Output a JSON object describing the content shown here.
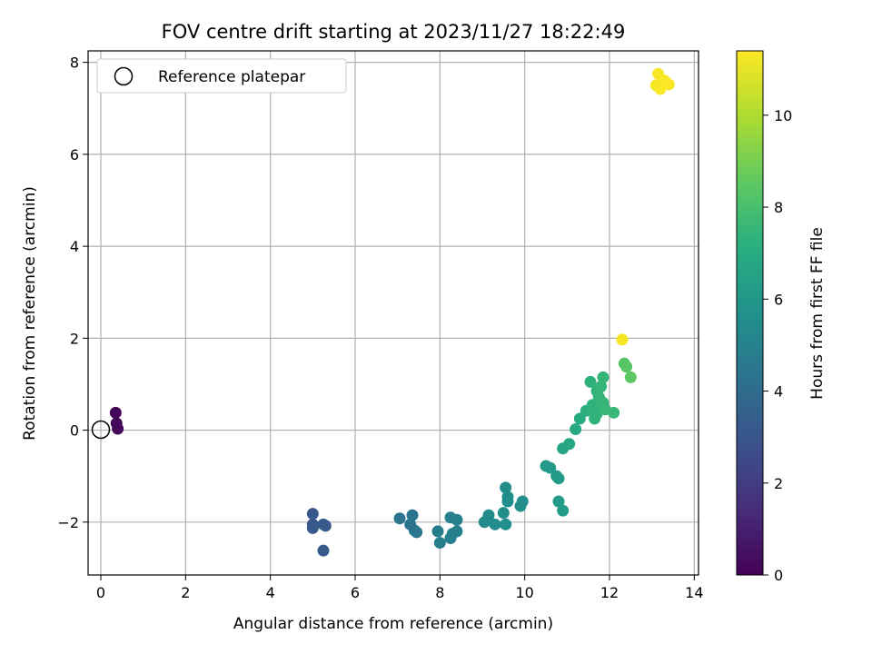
{
  "chart_data": {
    "type": "scatter",
    "title": "FOV centre drift starting at 2023/11/27 18:22:49",
    "xlabel": "Angular distance from reference (arcmin)",
    "ylabel": "Rotation from reference (arcmin)",
    "xlim": [
      -0.3,
      14.1
    ],
    "ylim": [
      -3.15,
      8.25
    ],
    "xticks": [
      0,
      2,
      4,
      6,
      8,
      10,
      12,
      14
    ],
    "yticks": [
      -2,
      0,
      2,
      4,
      6,
      8
    ],
    "grid": true,
    "legend": {
      "placement": "upper-left",
      "entries": [
        "Reference platepar"
      ]
    },
    "reference_point": {
      "x": 0,
      "y": 0
    },
    "colorbar": {
      "label": "Hours from first FF file",
      "colormap": "viridis",
      "range": [
        0,
        11.4
      ],
      "ticks": [
        0,
        2,
        4,
        6,
        8,
        10
      ]
    },
    "points": [
      {
        "x": 0.35,
        "y": 0.38,
        "c": 0.1
      },
      {
        "x": 0.37,
        "y": 0.15,
        "c": 0.15
      },
      {
        "x": 0.4,
        "y": 0.03,
        "c": 0.2
      },
      {
        "x": 5.0,
        "y": -1.82,
        "c": 3.1
      },
      {
        "x": 5.0,
        "y": -2.05,
        "c": 3.1
      },
      {
        "x": 5.0,
        "y": -2.13,
        "c": 3.15
      },
      {
        "x": 5.25,
        "y": -2.05,
        "c": 3.2
      },
      {
        "x": 5.3,
        "y": -2.08,
        "c": 3.2
      },
      {
        "x": 5.25,
        "y": -2.62,
        "c": 3.25
      },
      {
        "x": 7.05,
        "y": -1.92,
        "c": 4.3
      },
      {
        "x": 7.3,
        "y": -2.05,
        "c": 4.35
      },
      {
        "x": 7.35,
        "y": -1.85,
        "c": 4.35
      },
      {
        "x": 7.4,
        "y": -2.18,
        "c": 4.4
      },
      {
        "x": 7.45,
        "y": -2.22,
        "c": 4.4
      },
      {
        "x": 7.95,
        "y": -2.2,
        "c": 4.8
      },
      {
        "x": 8.0,
        "y": -2.45,
        "c": 4.8
      },
      {
        "x": 8.25,
        "y": -1.9,
        "c": 4.85
      },
      {
        "x": 8.3,
        "y": -2.25,
        "c": 4.9
      },
      {
        "x": 8.25,
        "y": -2.35,
        "c": 4.9
      },
      {
        "x": 8.4,
        "y": -1.95,
        "c": 4.9
      },
      {
        "x": 8.4,
        "y": -2.2,
        "c": 4.95
      },
      {
        "x": 9.05,
        "y": -2.0,
        "c": 5.4
      },
      {
        "x": 9.15,
        "y": -1.85,
        "c": 5.4
      },
      {
        "x": 9.3,
        "y": -2.05,
        "c": 5.45
      },
      {
        "x": 9.5,
        "y": -1.8,
        "c": 5.5
      },
      {
        "x": 9.55,
        "y": -1.25,
        "c": 5.5
      },
      {
        "x": 9.6,
        "y": -1.45,
        "c": 5.55
      },
      {
        "x": 9.55,
        "y": -2.05,
        "c": 5.55
      },
      {
        "x": 9.6,
        "y": -1.55,
        "c": 5.55
      },
      {
        "x": 9.9,
        "y": -1.65,
        "c": 5.6
      },
      {
        "x": 9.95,
        "y": -1.55,
        "c": 5.6
      },
      {
        "x": 10.5,
        "y": -0.78,
        "c": 6.1
      },
      {
        "x": 10.6,
        "y": -0.82,
        "c": 6.1
      },
      {
        "x": 10.75,
        "y": -1.0,
        "c": 6.15
      },
      {
        "x": 10.8,
        "y": -1.05,
        "c": 6.15
      },
      {
        "x": 10.8,
        "y": -1.55,
        "c": 6.2
      },
      {
        "x": 10.9,
        "y": -1.75,
        "c": 6.2
      },
      {
        "x": 10.9,
        "y": -0.4,
        "c": 6.7
      },
      {
        "x": 11.05,
        "y": -0.3,
        "c": 6.8
      },
      {
        "x": 11.2,
        "y": 0.02,
        "c": 6.9
      },
      {
        "x": 11.3,
        "y": 0.25,
        "c": 7.0
      },
      {
        "x": 11.45,
        "y": 0.42,
        "c": 7.2
      },
      {
        "x": 11.55,
        "y": 1.05,
        "c": 7.3
      },
      {
        "x": 11.6,
        "y": 0.55,
        "c": 7.3
      },
      {
        "x": 11.65,
        "y": 0.25,
        "c": 7.3
      },
      {
        "x": 11.7,
        "y": 0.35,
        "c": 7.35
      },
      {
        "x": 11.7,
        "y": 0.85,
        "c": 7.4
      },
      {
        "x": 11.75,
        "y": 0.5,
        "c": 7.4
      },
      {
        "x": 11.8,
        "y": 0.95,
        "c": 7.45
      },
      {
        "x": 11.85,
        "y": 1.15,
        "c": 7.5
      },
      {
        "x": 11.85,
        "y": 0.6,
        "c": 7.5
      },
      {
        "x": 11.9,
        "y": 0.45,
        "c": 7.55
      },
      {
        "x": 12.1,
        "y": 0.38,
        "c": 7.6
      },
      {
        "x": 11.6,
        "y": 0.45,
        "c": 7.35
      },
      {
        "x": 11.75,
        "y": 0.72,
        "c": 7.45
      },
      {
        "x": 12.35,
        "y": 1.45,
        "c": 8.3
      },
      {
        "x": 12.4,
        "y": 1.38,
        "c": 8.4
      },
      {
        "x": 12.5,
        "y": 1.15,
        "c": 8.5
      },
      {
        "x": 12.3,
        "y": 1.97,
        "c": 11.3
      },
      {
        "x": 13.15,
        "y": 7.75,
        "c": 11.3
      },
      {
        "x": 13.1,
        "y": 7.5,
        "c": 11.3
      },
      {
        "x": 13.3,
        "y": 7.6,
        "c": 11.35
      },
      {
        "x": 13.2,
        "y": 7.42,
        "c": 11.35
      },
      {
        "x": 13.4,
        "y": 7.52,
        "c": 11.4
      }
    ]
  }
}
